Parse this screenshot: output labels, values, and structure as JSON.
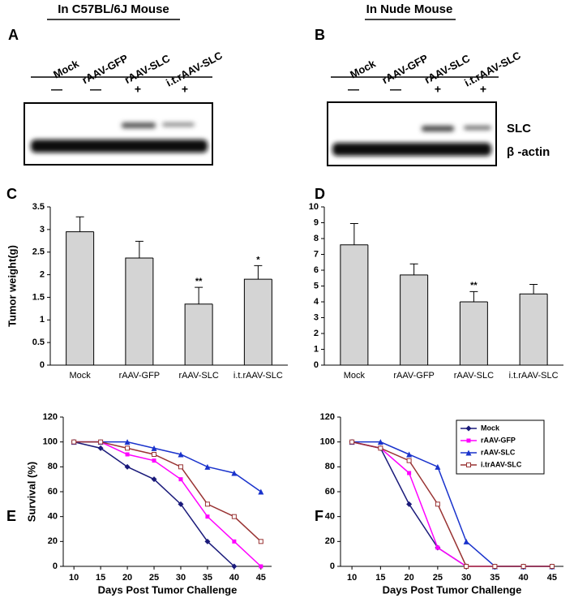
{
  "blots": [
    {
      "panel": "A",
      "title": "In C57BL/6J Mouse",
      "lanes": [
        "Mock",
        "rAAV-GFP",
        "rAAV-SLC",
        "i.t.rAAV-SLC"
      ],
      "signs": [
        "—",
        "—",
        "+",
        "+"
      ]
    },
    {
      "panel": "B",
      "title": "In Nude Mouse",
      "lanes": [
        "Mock",
        "rAAV-GFP",
        "rAAV-SLC",
        "i.t.rAAV-SLC"
      ],
      "signs": [
        "—",
        "—",
        "+",
        "+"
      ],
      "band_labels": [
        "SLC",
        "β -actin"
      ]
    }
  ],
  "chart_data": [
    {
      "type": "bar",
      "panel": "C",
      "y_label": "Tumor weight(g)",
      "categories": [
        "Mock",
        "rAAV-GFP",
        "rAAV-SLC",
        "i.t.rAAV-SLC"
      ],
      "values": [
        2.95,
        2.37,
        1.35,
        1.9
      ],
      "errors": [
        0.33,
        0.37,
        0.37,
        0.3
      ],
      "color": "#d4d4d4",
      "annotations": [
        {
          "category": "rAAV-SLC",
          "text": "**"
        },
        {
          "category": "i.t.rAAV-SLC",
          "text": "*"
        }
      ],
      "ylim": [
        0,
        3.5
      ],
      "yticks": [
        0,
        0.5,
        1,
        1.5,
        2,
        2.5,
        3,
        3.5
      ]
    },
    {
      "type": "bar",
      "panel": "D",
      "categories": [
        "Mock",
        "rAAV-GFP",
        "rAAV-SLC",
        "i.t.rAAV-SLC"
      ],
      "values": [
        7.6,
        5.7,
        4.0,
        4.5
      ],
      "errors": [
        1.35,
        0.7,
        0.65,
        0.6
      ],
      "color": "#d4d4d4",
      "annotations": [
        {
          "category": "rAAV-SLC",
          "text": "**"
        }
      ],
      "ylim": [
        0,
        10
      ],
      "yticks": [
        0,
        1,
        2,
        3,
        4,
        5,
        6,
        7,
        8,
        9,
        10
      ]
    },
    {
      "type": "line",
      "panel": "E",
      "y_label": "Survival (%)",
      "x_label": "Days Post Tumor Challenge",
      "legend": false,
      "x": [
        10,
        15,
        20,
        25,
        30,
        35,
        40,
        45
      ],
      "series": [
        {
          "color": "#1a1a7a",
          "marker": "diamond",
          "values": [
            100,
            95,
            80,
            70,
            50,
            20,
            0,
            null
          ]
        },
        {
          "color": "#ff00ff",
          "marker": "square",
          "values": [
            100,
            100,
            90,
            85,
            70,
            40,
            20,
            0
          ]
        },
        {
          "color": "#1a33cc",
          "marker": "triangle",
          "values": [
            100,
            100,
            100,
            95,
            90,
            80,
            75,
            60
          ]
        },
        {
          "color": "#993333",
          "marker": "open-square",
          "values": [
            100,
            100,
            95,
            90,
            80,
            50,
            40,
            20
          ]
        }
      ],
      "xlim": [
        8,
        47
      ],
      "xticks": [
        10,
        15,
        20,
        25,
        30,
        35,
        40,
        45
      ],
      "ylim": [
        0,
        120
      ],
      "yticks": [
        0,
        20,
        40,
        60,
        80,
        100,
        120
      ]
    },
    {
      "type": "line",
      "panel": "F",
      "x_label": "Days Post Tumor Challenge",
      "legend": "upper right",
      "x": [
        10,
        15,
        20,
        25,
        30,
        35,
        40,
        45
      ],
      "series": [
        {
          "name": "Mock",
          "color": "#1a1a7a",
          "marker": "diamond",
          "values": [
            100,
            95,
            50,
            15,
            0,
            null,
            null,
            null
          ]
        },
        {
          "name": "rAAV-GFP",
          "color": "#ff00ff",
          "marker": "square",
          "values": [
            100,
            95,
            75,
            15,
            0,
            0,
            0,
            0
          ]
        },
        {
          "name": "rAAV-SLC",
          "color": "#1a33cc",
          "marker": "triangle",
          "values": [
            100,
            100,
            90,
            80,
            20,
            0,
            0,
            0
          ]
        },
        {
          "name": "i.trAAV-SLC",
          "color": "#993333",
          "marker": "open-square",
          "values": [
            100,
            95,
            85,
            50,
            0,
            0,
            0,
            0
          ]
        }
      ],
      "xlim": [
        8,
        47
      ],
      "xticks": [
        10,
        15,
        20,
        25,
        30,
        35,
        40,
        45
      ],
      "ylim": [
        0,
        120
      ],
      "yticks": [
        0,
        20,
        40,
        60,
        80,
        100,
        120
      ]
    }
  ]
}
